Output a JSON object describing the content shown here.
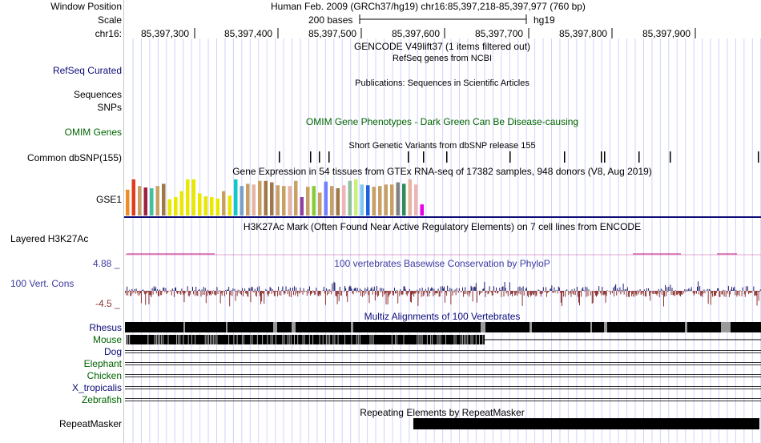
{
  "header": {
    "window_position_label": "Window Position",
    "window_position_text": "Human Feb. 2009 (GRCh37/hg19)   chr16:85,397,218-85,397,977 (760 bp)",
    "scale_label": "Scale",
    "scale_text": "200 bases",
    "scale_assembly": "hg19",
    "chrom_label": "chr16:",
    "ticks": [
      "85,397,300",
      "85,397,400",
      "85,397,500",
      "85,397,600",
      "85,397,700",
      "85,397,800",
      "85,397,900"
    ]
  },
  "tracks": {
    "gencode_title": "GENCODE V49lift37 (1 items filtered out)",
    "refseq_title": "RefSeq genes from NCBI",
    "refseq_label": "RefSeq Curated",
    "publications_title": "Publications: Sequences in Scientific Articles",
    "sequences_label": "Sequences",
    "snps_label": "SNPs",
    "omim_title": "OMIM Gene Phenotypes - Dark Green Can Be Disease-causing",
    "omim_label": "OMIM Genes",
    "dbsnp_title": "Short Genetic Variants from dbSNP release 155",
    "dbsnp_label": "Common dbSNP(155)",
    "gtex_title": "Gene Expression in 54 tissues from GTEx RNA-seq of 17382 samples, 948 donors (V8, Aug 2019)",
    "gtex_label": "GSE1",
    "h3k27_title": "H3K27Ac Mark (Often Found Near Active Regulatory Elements) on 7 cell lines from ENCODE",
    "h3k27_label": "Layered H3K27Ac",
    "phylop_title": "100 vertebrates Basewise Conservation by PhyloP",
    "phylop_label": "100 Vert. Cons",
    "phylop_max": "4.88 _",
    "phylop_min": "-4.5 _",
    "multiz_title": "Multiz Alignments of 100 Vertebrates",
    "species": [
      "Rhesus",
      "Mouse",
      "Dog",
      "Elephant",
      "Chicken",
      "X_tropicalis",
      "Zebrafish"
    ],
    "repeat_title": "Repeating Elements by RepeatMasker",
    "repeat_label": "RepeatMasker"
  },
  "colors": {
    "refseq": "#0c0c78",
    "omim": "#006400",
    "phylop_pos": "#1e1e6e",
    "phylop_neg": "#8c3232",
    "h3k27": "#c83c96",
    "grid": "#d2d2ff"
  },
  "chart_data": {
    "type": "bar",
    "gtex_relative_heights": [
      0.7,
      0.98,
      0.8,
      0.76,
      0.74,
      0.8,
      0.86,
      0.44,
      0.5,
      0.66,
      0.98,
      0.98,
      0.6,
      0.52,
      0.5,
      0.46,
      0.66,
      0.54,
      0.98,
      0.8,
      0.86,
      0.84,
      0.94,
      0.94,
      0.9,
      0.82,
      0.8,
      0.8,
      0.94,
      0.5,
      0.78,
      0.8,
      0.62,
      0.92,
      0.8,
      0.74,
      0.82,
      0.94,
      0.98,
      0.84,
      0.82,
      0.78,
      0.8,
      0.84,
      0.84,
      0.9,
      0.86,
      0.98,
      0.84,
      0.3
    ],
    "gtex_colors": [
      "#f08c28",
      "#e03c1e",
      "#c8a064",
      "#9e2040",
      "#40c0a0",
      "#c8a064",
      "#a07848",
      "#e8e800",
      "#e8e800",
      "#e8e800",
      "#e8e800",
      "#e8e800",
      "#e8e800",
      "#e8e800",
      "#e8e800",
      "#e8e800",
      "#c8a064",
      "#e8e800",
      "#10c8c8",
      "#78a0c8",
      "#c8a064",
      "#e6b4a0",
      "#c8a064",
      "#a07848",
      "#a07848",
      "#c8a064",
      "#c8a064",
      "#e6b4a0",
      "#c8a064",
      "#9040a0",
      "#c8a064",
      "#88cc33",
      "#c8a064",
      "#7080ff",
      "#c8a064",
      "#a07848",
      "#f0b4b4",
      "#90c0a0",
      "#c8f07c",
      "#80c8f0",
      "#2060e0",
      "#c8a064",
      "#c8a064",
      "#c8a064",
      "#c8a064",
      "#808080",
      "#2c8c54",
      "#e6b4a0",
      "#f0b4b4",
      "#e800e8"
    ],
    "snp_positions": [
      348,
      387,
      398,
      410,
      509,
      528,
      557,
      636,
      704,
      750,
      754,
      797,
      836,
      946
    ],
    "rhesus_gaps": [
      [
        229,
        231
      ],
      [
        282,
        284
      ],
      [
        341,
        346
      ],
      [
        364,
        369
      ],
      [
        438,
        441
      ],
      [
        600,
        606
      ],
      [
        661,
        664
      ],
      [
        737,
        739
      ],
      [
        754,
        758
      ],
      [
        855,
        858
      ],
      [
        900,
        912
      ]
    ],
    "mouse_span": [
      157,
      605
    ],
    "repeat_span": [
      516,
      948
    ]
  }
}
